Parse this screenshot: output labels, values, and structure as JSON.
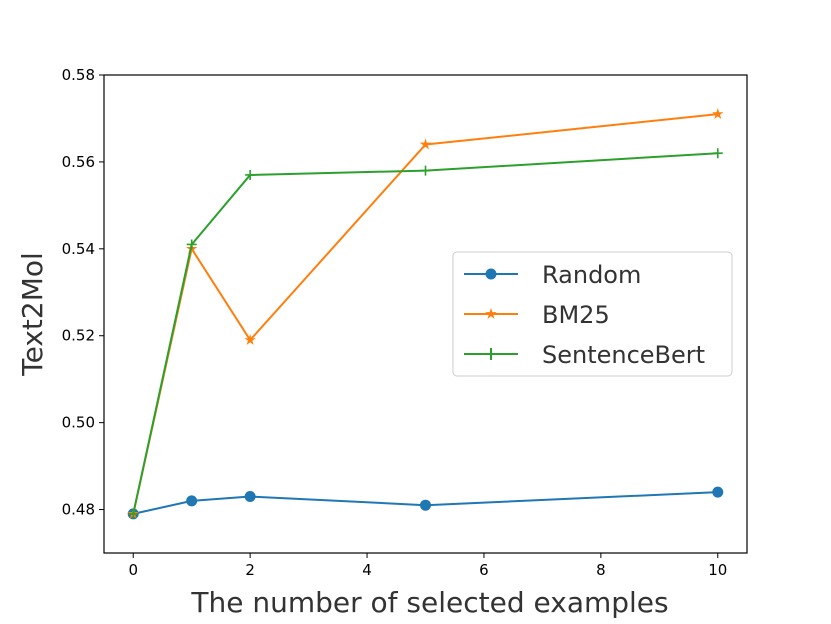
{
  "chart_data": {
    "type": "line",
    "title": "",
    "xlabel": "The number of selected examples",
    "ylabel": "Text2Mol",
    "xlim": [
      -0.5,
      10.5
    ],
    "ylim": [
      0.47,
      0.58
    ],
    "xticks": [
      0,
      2,
      4,
      6,
      8,
      10
    ],
    "xtick_labels": [
      "0",
      "2",
      "4",
      "6",
      "8",
      "10"
    ],
    "yticks": [
      0.48,
      0.5,
      0.52,
      0.54,
      0.56,
      0.58
    ],
    "ytick_labels": [
      "0.48",
      "0.50",
      "0.52",
      "0.54",
      "0.56",
      "0.58"
    ],
    "grid": false,
    "legend_position": "center-right",
    "x": [
      0,
      1,
      2,
      5,
      10
    ],
    "series": [
      {
        "name": "Random",
        "color": "#1f77b4",
        "marker": "circle",
        "values": [
          0.479,
          0.482,
          0.483,
          0.481,
          0.484
        ]
      },
      {
        "name": "BM25",
        "color": "#ff7f0e",
        "marker": "star",
        "values": [
          0.479,
          0.54,
          0.519,
          0.564,
          0.571
        ]
      },
      {
        "name": "SentenceBert",
        "color": "#2ca02c",
        "marker": "plus",
        "values": [
          0.479,
          0.541,
          0.557,
          0.558,
          0.562
        ]
      }
    ]
  }
}
